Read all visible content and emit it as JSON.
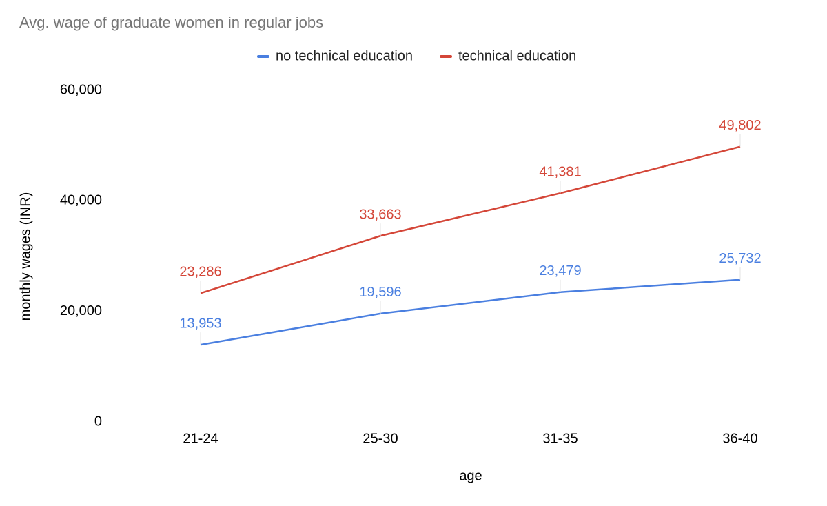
{
  "chart_data": {
    "type": "line",
    "title": "Avg. wage of graduate women in regular jobs",
    "x_label": "age",
    "y_label": "monthly wages (INR)",
    "categories": [
      "21-24",
      "25-30",
      "31-35",
      "36-40"
    ],
    "series": [
      {
        "name": "no technical education",
        "color": "#4a7fe0",
        "values": [
          13953,
          19596,
          23479,
          25732
        ],
        "value_labels": [
          "13,953",
          "19,596",
          "23,479",
          "25,732"
        ]
      },
      {
        "name": "technical education",
        "color": "#d44638",
        "values": [
          23286,
          33663,
          41381,
          49802
        ],
        "value_labels": [
          "23,286",
          "33,663",
          "41,381",
          "49,802"
        ]
      }
    ],
    "ylim": [
      0,
      60000
    ],
    "yticks": [
      0,
      {
        "value": 20000,
        "label": "20,000"
      },
      {
        "value": 40000,
        "label": "40,000"
      },
      {
        "value": 60000,
        "label": "60,000"
      }
    ],
    "grid": false,
    "legend": "top"
  }
}
